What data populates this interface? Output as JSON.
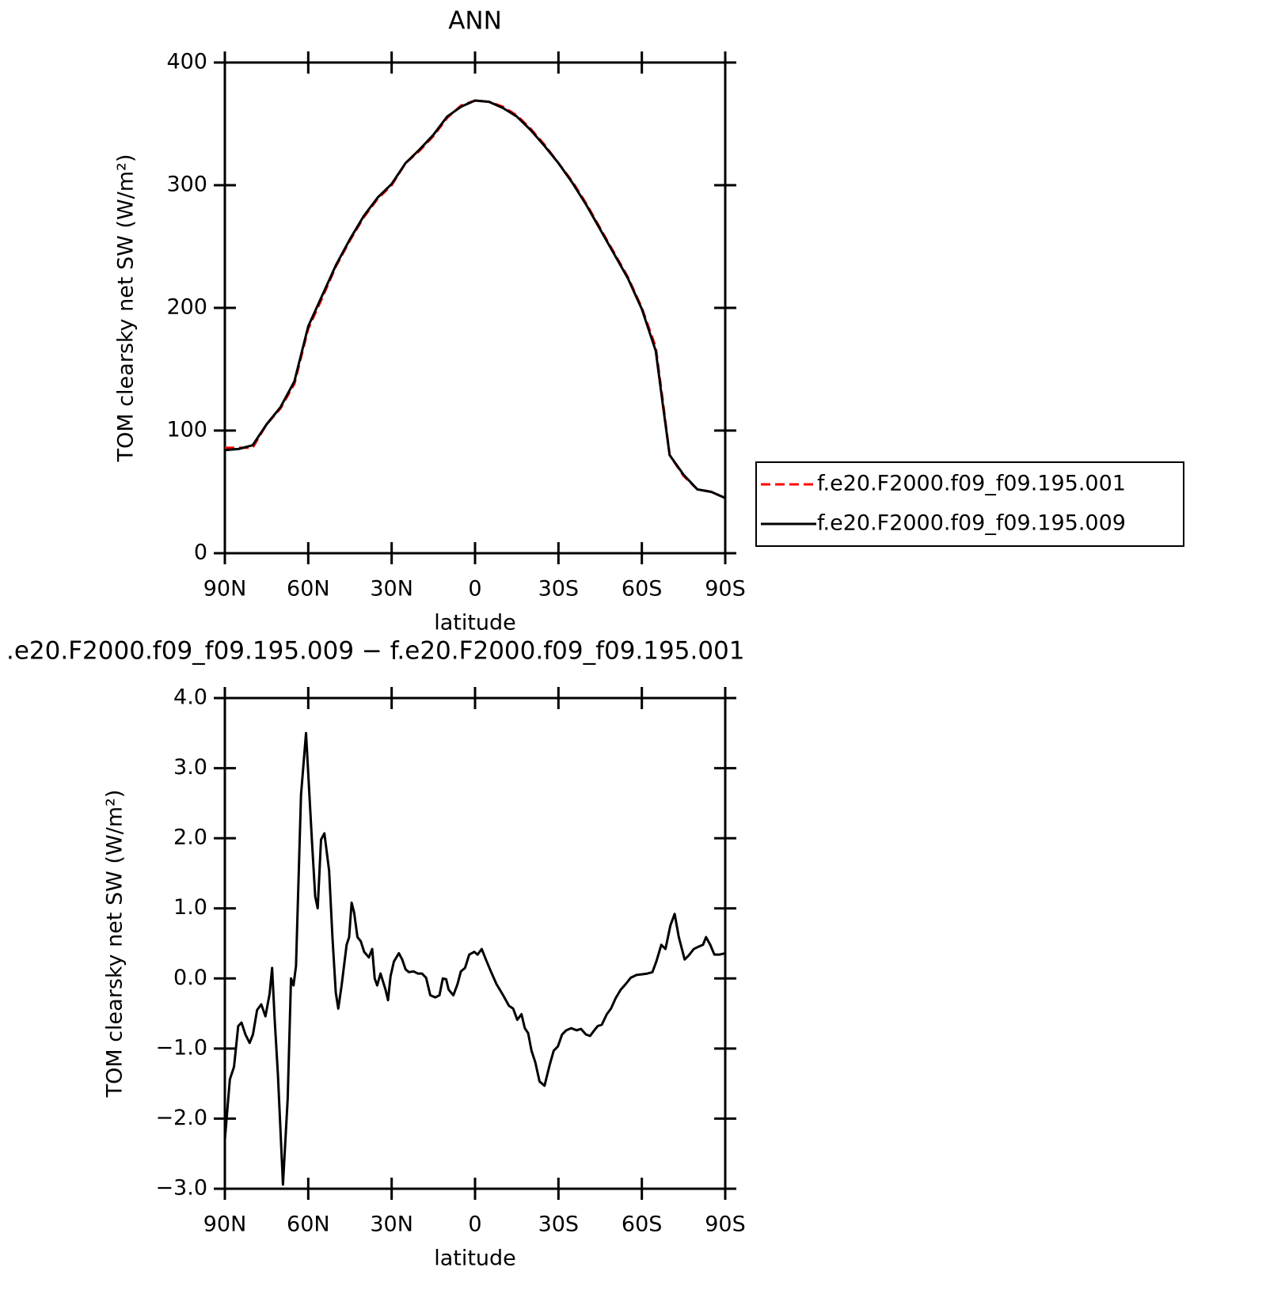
{
  "chart_data": [
    {
      "type": "line",
      "title": "ANN",
      "xlabel": "latitude",
      "ylabel": "TOM clearsky net SW (W/m²)",
      "x": [
        90,
        85,
        80,
        75,
        70,
        65,
        60,
        55,
        50,
        45,
        40,
        35,
        30,
        25,
        20,
        15,
        10,
        5,
        0,
        -5,
        -10,
        -15,
        -20,
        -25,
        -30,
        -35,
        -40,
        -45,
        -50,
        -55,
        -60,
        -65,
        -67.5,
        -70,
        -75,
        -80,
        -85,
        -90
      ],
      "series": [
        {
          "name": "f.e20.F2000.f09_f09.195.001",
          "color": "#ff0000",
          "dashed": true,
          "values": [
            86,
            86,
            86,
            105,
            118,
            138,
            183,
            208,
            234,
            255,
            274,
            289,
            300,
            318,
            328,
            340,
            355,
            365,
            369,
            368,
            364,
            357,
            346,
            333,
            318,
            303,
            285,
            265,
            245,
            225,
            200,
            168,
            125,
            80,
            63,
            52,
            50,
            45
          ]
        },
        {
          "name": "f.e20.F2000.f09_f09.195.009",
          "color": "#000000",
          "dashed": false,
          "values": [
            84,
            85,
            88,
            105,
            119,
            140,
            185,
            210,
            235,
            256,
            275,
            290,
            301,
            318,
            329,
            341,
            356,
            364,
            369,
            368,
            363,
            356,
            345,
            332,
            318,
            302,
            284,
            264,
            244,
            224,
            199,
            165,
            122,
            80,
            64,
            52,
            50,
            45
          ]
        }
      ],
      "xlim": [
        90,
        -90
      ],
      "xticks": [
        {
          "value": 90,
          "label": "90N"
        },
        {
          "value": 60,
          "label": "60N"
        },
        {
          "value": 30,
          "label": "30N"
        },
        0,
        {
          "value": -30,
          "label": "30S"
        },
        {
          "value": -60,
          "label": "60S"
        },
        {
          "value": -90,
          "label": "90S"
        }
      ],
      "ylim": [
        0,
        400
      ],
      "yticks": [
        0,
        100,
        200,
        300,
        400
      ],
      "legend": "outside-right"
    },
    {
      "type": "line",
      "title": ".e20.F2000.f09_f09.195.009 − f.e20.F2000.f09_f09.195.001",
      "xlabel": "latitude",
      "ylabel": "TOM clearsky net SW (W/m²)",
      "x": [
        90,
        88.2,
        86.7,
        85.2,
        84,
        82.6,
        81.1,
        79.9,
        78.4,
        76.9,
        75.4,
        73.9,
        73,
        72.1,
        70.9,
        69.1,
        67.4,
        66.2,
        65.3,
        64.4,
        62.6,
        60.8,
        59.9,
        58.7,
        57.5,
        56.6,
        55.4,
        54.2,
        52.5,
        51.3,
        50.1,
        49.2,
        48,
        46.2,
        45.3,
        44.4,
        43.5,
        42.3,
        41.1,
        39.9,
        38.2,
        37,
        36.1,
        35.2,
        34,
        32.2,
        31.3,
        30.4,
        29.2,
        27.4,
        26.2,
        25,
        23.8,
        22.1,
        20.6,
        19.1,
        17.6,
        16.1,
        14.3,
        12.8,
        11.6,
        10.4,
        9.5,
        7.8,
        6.3,
        5.1,
        3.6,
        2.1,
        0.3,
        -0.9,
        -2.4,
        -3.9,
        -5.7,
        -7.7,
        -10.1,
        -12.2,
        -13.7,
        -15.2,
        -16.7,
        -17.9,
        -19.1,
        -20.3,
        -21.7,
        -23.2,
        -25,
        -26.8,
        -28.3,
        -29.8,
        -31.3,
        -32.8,
        -34.6,
        -36.6,
        -38.1,
        -39.9,
        -41.4,
        -42.9,
        -44.1,
        -45.6,
        -47.4,
        -48.9,
        -50.6,
        -52.4,
        -54.2,
        -56,
        -58.1,
        -60.2,
        -62,
        -63.8,
        -65.2,
        -67,
        -68.5,
        -70.3,
        -71.8,
        -73.3,
        -75.4,
        -76.9,
        -78.7,
        -80.2,
        -82,
        -83.1,
        -84.6,
        -86.1,
        -87.9,
        -90
      ],
      "series": [
        {
          "name": null,
          "color": "#000000",
          "dashed": false,
          "values": [
            -2.3,
            -1.44,
            -1.26,
            -0.68,
            -0.63,
            -0.8,
            -0.92,
            -0.8,
            -0.45,
            -0.37,
            -0.54,
            -0.22,
            0.15,
            -0.57,
            -1.38,
            -2.94,
            -1.72,
            0,
            -0.1,
            0.18,
            2.62,
            3.5,
            2.85,
            1.98,
            1.17,
            1.0,
            1.98,
            2.07,
            1.54,
            0.59,
            -0.2,
            -0.43,
            -0.1,
            0.48,
            0.59,
            1.08,
            0.94,
            0.59,
            0.53,
            0.38,
            0.3,
            0.42,
            0,
            -0.1,
            0.07,
            -0.16,
            -0.31,
            0.03,
            0.24,
            0.36,
            0.27,
            0.13,
            0.09,
            0.1,
            0.07,
            0.07,
            0.01,
            -0.24,
            -0.27,
            -0.24,
            0,
            -0.01,
            -0.16,
            -0.24,
            -0.08,
            0.1,
            0.15,
            0.34,
            0.38,
            0.34,
            0.42,
            0.27,
            0.1,
            -0.08,
            -0.24,
            -0.39,
            -0.43,
            -0.59,
            -0.51,
            -0.71,
            -0.78,
            -1.03,
            -1.2,
            -1.47,
            -1.53,
            -1.24,
            -1.03,
            -0.97,
            -0.8,
            -0.74,
            -0.71,
            -0.74,
            -0.72,
            -0.8,
            -0.82,
            -0.74,
            -0.68,
            -0.66,
            -0.51,
            -0.43,
            -0.28,
            -0.16,
            -0.08,
            0.01,
            0.05,
            0.06,
            0.07,
            0.09,
            0.24,
            0.48,
            0.42,
            0.76,
            0.92,
            0.59,
            0.27,
            0.33,
            0.42,
            0.45,
            0.48,
            0.59,
            0.48,
            0.34,
            0.34,
            0.36
          ]
        }
      ],
      "xlim": [
        90,
        -90
      ],
      "xticks": [
        {
          "value": 90,
          "label": "90N"
        },
        {
          "value": 60,
          "label": "60N"
        },
        {
          "value": 30,
          "label": "30N"
        },
        0,
        {
          "value": -30,
          "label": "30S"
        },
        {
          "value": -60,
          "label": "60S"
        },
        {
          "value": -90,
          "label": "90S"
        }
      ],
      "ylim": [
        -3,
        4
      ],
      "yticks": [
        {
          "value": -3,
          "label": "−3.0"
        },
        {
          "value": -2,
          "label": "−2.0"
        },
        {
          "value": -1,
          "label": "−1.0"
        },
        {
          "value": 0,
          "label": "0.0"
        },
        {
          "value": 1,
          "label": "1.0"
        },
        {
          "value": 2,
          "label": "2.0"
        },
        {
          "value": 3,
          "label": "3.0"
        },
        {
          "value": 4,
          "label": "4.0"
        }
      ]
    }
  ]
}
